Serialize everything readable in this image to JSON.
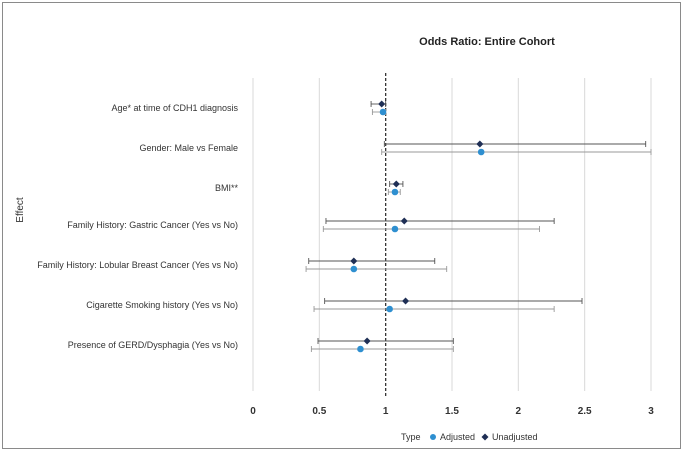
{
  "chart_data": {
    "type": "forest",
    "title": "Odds Ratio: Entire Cohort",
    "ylabel": "Effect",
    "xlim": [
      0,
      3
    ],
    "x_ticks": [
      "0",
      "0.5",
      "1",
      "1.5",
      "2",
      "2.5",
      "3"
    ],
    "x_tick_values": [
      0,
      0.5,
      1,
      1.5,
      2,
      2.5,
      3
    ],
    "reference_line": 1,
    "grid": "vertical",
    "legend_position": "bottom",
    "legend_title": "Type",
    "series": [
      {
        "name": "Adjusted",
        "color": "#2e8fd0",
        "marker": "circle"
      },
      {
        "name": "Unadjusted",
        "color": "#1f2f55",
        "marker": "diamond"
      }
    ],
    "effects": [
      {
        "label": "Age* at time of CDH1 diagnosis",
        "unadjusted": {
          "or": 0.97,
          "low": 0.89,
          "high": 1.0
        },
        "adjusted": {
          "or": 0.98,
          "low": 0.9,
          "high": 1.0
        }
      },
      {
        "label": "Gender: Male vs Female",
        "unadjusted": {
          "or": 1.71,
          "low": 0.99,
          "high": 2.96
        },
        "adjusted": {
          "or": 1.72,
          "low": 0.97,
          "high": 3.0
        }
      },
      {
        "label": "BMI**",
        "unadjusted": {
          "or": 1.08,
          "low": 1.03,
          "high": 1.13
        },
        "adjusted": {
          "or": 1.07,
          "low": 1.02,
          "high": 1.11
        }
      },
      {
        "label": "Family History: Gastric Cancer (Yes vs No)",
        "unadjusted": {
          "or": 1.14,
          "low": 0.55,
          "high": 2.27
        },
        "adjusted": {
          "or": 1.07,
          "low": 0.53,
          "high": 2.16
        }
      },
      {
        "label": "Family History: Lobular Breast Cancer (Yes vs No)",
        "unadjusted": {
          "or": 0.76,
          "low": 0.42,
          "high": 1.37
        },
        "adjusted": {
          "or": 0.76,
          "low": 0.4,
          "high": 1.46
        }
      },
      {
        "label": "Cigarette Smoking history (Yes vs No)",
        "unadjusted": {
          "or": 1.15,
          "low": 0.54,
          "high": 2.48
        },
        "adjusted": {
          "or": 1.03,
          "low": 0.46,
          "high": 2.27
        }
      },
      {
        "label": "Presence of GERD/Dysphagia (Yes vs No)",
        "unadjusted": {
          "or": 0.86,
          "low": 0.49,
          "high": 1.51
        },
        "adjusted": {
          "or": 0.81,
          "low": 0.44,
          "high": 1.51
        }
      }
    ]
  }
}
